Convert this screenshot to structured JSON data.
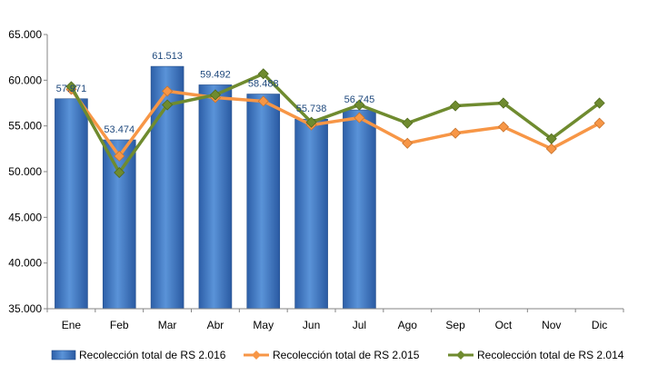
{
  "chart_data": {
    "type": "bar",
    "categories": [
      "Ene",
      "Feb",
      "Mar",
      "Abr",
      "May",
      "Jun",
      "Jul",
      "Ago",
      "Sep",
      "Oct",
      "Nov",
      "Dic"
    ],
    "y_ticks": [
      "35.000",
      "40.000",
      "45.000",
      "50.000",
      "55.000",
      "60.000",
      "65.000"
    ],
    "ylim": [
      35000,
      65000
    ],
    "grid": false,
    "legend_position": "bottom",
    "series": [
      {
        "name": "Recolección total de RS 2.016",
        "type": "bar",
        "color": "#3a74c0",
        "values": [
          57971,
          53474,
          61513,
          59492,
          58488,
          55738,
          56745,
          null,
          null,
          null,
          null,
          null
        ],
        "labels": [
          "57.971",
          "53.474",
          "61.513",
          "59.492",
          "58.488",
          "55.738",
          "56.745",
          "",
          "",
          "",
          "",
          ""
        ]
      },
      {
        "name": "Recolección total de RS 2.015",
        "type": "line",
        "color": "#f79646",
        "values": [
          59000,
          51700,
          58800,
          58100,
          57700,
          55100,
          55900,
          53100,
          54200,
          54900,
          52500,
          55300
        ]
      },
      {
        "name": "Recolección total de RS 2.014",
        "type": "line",
        "color": "#6f8b2f",
        "values": [
          59300,
          49900,
          57300,
          58400,
          60700,
          55400,
          57300,
          55300,
          57200,
          57500,
          53600,
          57500
        ]
      }
    ]
  }
}
